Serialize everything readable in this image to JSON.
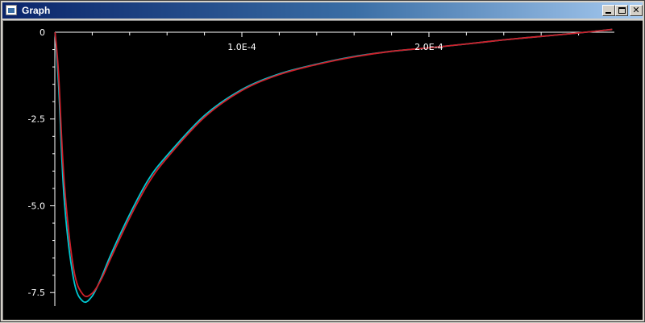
{
  "window": {
    "title": "Graph",
    "icon": "graph-window-icon",
    "controls": [
      "minimize-icon",
      "maximize-icon",
      "close-icon"
    ]
  },
  "colors": {
    "background": "#000000",
    "axis": "#ffffff",
    "series_cyan": "#00c8d2",
    "series_red": "#d0202a"
  },
  "chart_data": {
    "type": "line",
    "title": "",
    "xlabel": "",
    "ylabel": "",
    "xlim": [
      -5e-08,
      3e-07
    ],
    "ylim": [
      -7.85,
      0.1
    ],
    "x_ticks": [
      {
        "value": 0.0001,
        "label": "1.0E-4"
      },
      {
        "value": 0.0002,
        "label": "2.0E-4"
      }
    ],
    "y_ticks": [
      {
        "value": 0,
        "label": "0"
      },
      {
        "value": -2.5,
        "label": "-2.5"
      },
      {
        "value": -5.0,
        "label": "-5.0"
      },
      {
        "value": -7.5,
        "label": "-7.5"
      }
    ],
    "grid": false,
    "series": [
      {
        "color": "#00c8d2",
        "x": [
          1e-07,
          2e-06,
          5e-06,
          1e-05,
          1.5e-05,
          2e-05,
          2.5e-05,
          3e-05,
          4e-05,
          5e-05,
          6e-05,
          8e-05,
          0.0001,
          0.00012,
          0.00014,
          0.00016,
          0.00018,
          0.0002,
          0.00022,
          0.00024,
          0.00026,
          0.00028,
          0.000298
        ],
        "y": [
          0,
          -1.5,
          -4.8,
          -7.1,
          -7.75,
          -7.6,
          -7.05,
          -6.4,
          -5.25,
          -4.25,
          -3.55,
          -2.4,
          -1.65,
          -1.2,
          -0.92,
          -0.7,
          -0.55,
          -0.45,
          -0.34,
          -0.22,
          -0.12,
          -0.02,
          0.08
        ]
      },
      {
        "color": "#d0202a",
        "x": [
          1e-07,
          2e-06,
          5e-06,
          1e-05,
          1.5e-05,
          2e-05,
          2.5e-05,
          3e-05,
          4e-05,
          5e-05,
          6e-05,
          8e-05,
          0.0001,
          0.00012,
          0.00014,
          0.00016,
          0.00018,
          0.0002,
          0.00022,
          0.00024,
          0.00026,
          0.00028,
          0.000298
        ],
        "y": [
          0,
          -1.2,
          -4.3,
          -6.8,
          -7.55,
          -7.52,
          -7.1,
          -6.5,
          -5.35,
          -4.35,
          -3.62,
          -2.45,
          -1.68,
          -1.22,
          -0.93,
          -0.71,
          -0.55,
          -0.45,
          -0.34,
          -0.22,
          -0.12,
          -0.02,
          0.08
        ]
      }
    ]
  }
}
